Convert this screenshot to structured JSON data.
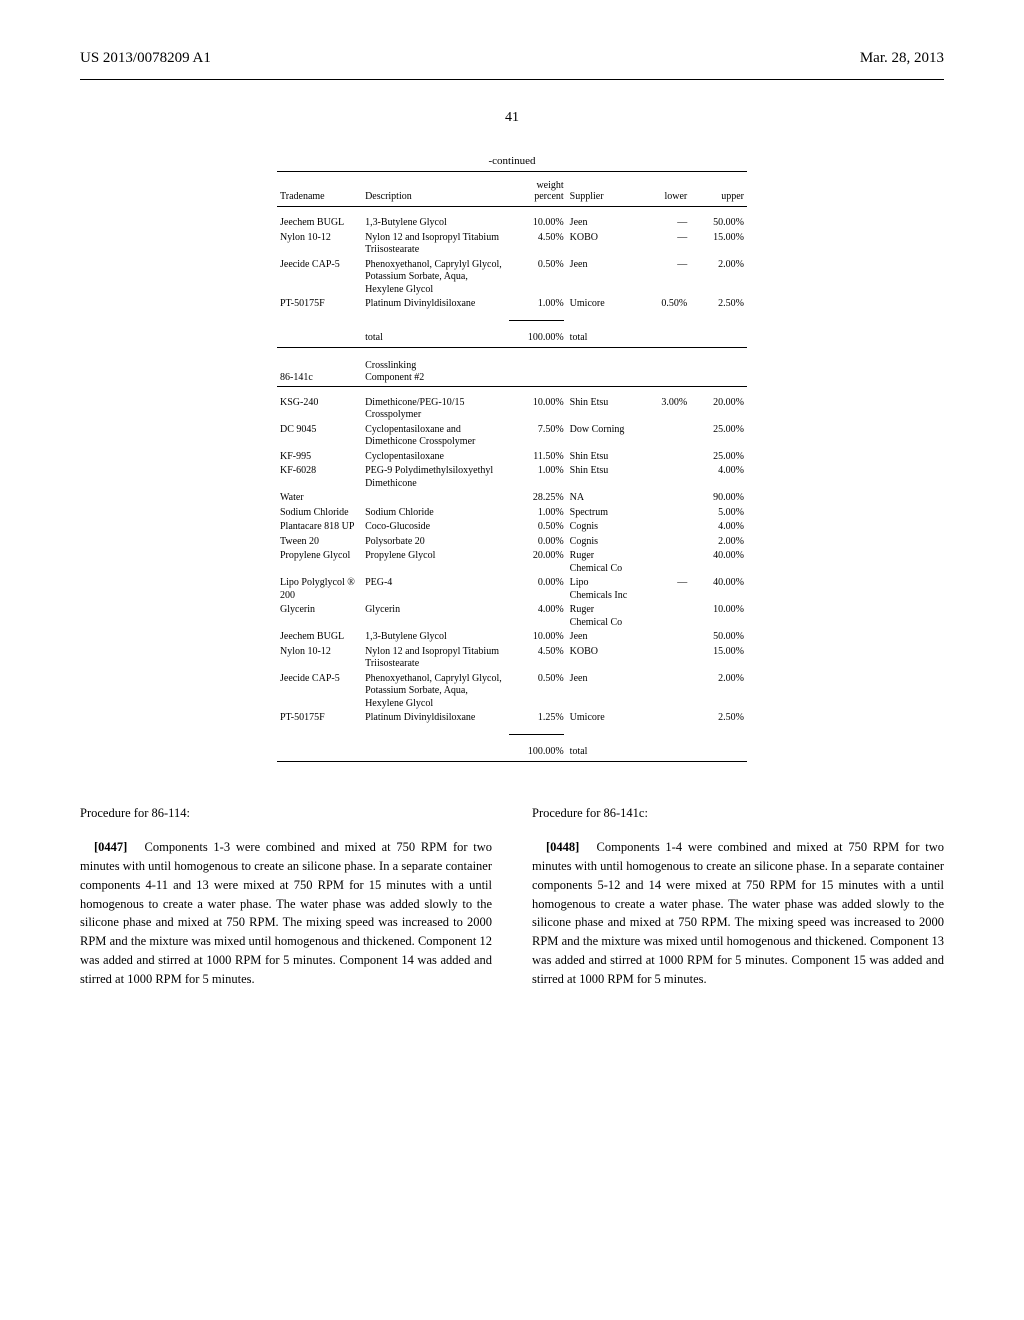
{
  "header": {
    "left": "US 2013/0078209 A1",
    "right": "Mar. 28, 2013"
  },
  "page_number": "41",
  "table": {
    "continued": "-continued",
    "columns": {
      "tradename": "Tradename",
      "description": "Description",
      "weight_line1": "weight",
      "weight_line2": "percent",
      "supplier": "Supplier",
      "lower": "lower",
      "upper": "upper"
    },
    "section1": [
      {
        "trade": "Jeechem BUGL",
        "desc": "1,3-Butylene Glycol",
        "wt": "10.00%",
        "sup": "Jeen",
        "low": "—",
        "up": "50.00%"
      },
      {
        "trade": "Nylon 10-12",
        "desc": "Nylon 12 and Isopropyl Titabium Triisostearate",
        "wt": "4.50%",
        "sup": "KOBO",
        "low": "—",
        "up": "15.00%"
      },
      {
        "trade": "Jeecide CAP-5",
        "desc": "Phenoxyethanol, Caprylyl Glycol, Potassium Sorbate, Aqua, Hexylene Glycol",
        "wt": "0.50%",
        "sup": "Jeen",
        "low": "—",
        "up": "2.00%"
      },
      {
        "trade": "PT-50175F",
        "desc": "Platinum Divinyldisiloxane",
        "wt": "1.00%",
        "sup": "Umicore",
        "low": "0.50%",
        "up": "2.50%"
      }
    ],
    "section1_total": {
      "label": "total",
      "wt": "100.00%",
      "sup": "total"
    },
    "mid_header": {
      "code": "86-141c",
      "desc1": "Crosslinking",
      "desc2": "Component #2"
    },
    "section2": [
      {
        "trade": "KSG-240",
        "desc": "Dimethicone/PEG-10/15 Crosspolymer",
        "wt": "10.00%",
        "sup": "Shin Etsu",
        "low": "3.00%",
        "up": "20.00%"
      },
      {
        "trade": "DC 9045",
        "desc": "Cyclopentasiloxane and Dimethicone Crosspolymer",
        "wt": "7.50%",
        "sup": "Dow Corning",
        "low": "",
        "up": "25.00%"
      },
      {
        "trade": "KF-995",
        "desc": "Cyclopentasiloxane",
        "wt": "11.50%",
        "sup": "Shin Etsu",
        "low": "",
        "up": "25.00%"
      },
      {
        "trade": "KF-6028",
        "desc": "PEG-9 Polydimethylsiloxyethyl Dimethicone",
        "wt": "1.00%",
        "sup": "Shin Etsu",
        "low": "",
        "up": "4.00%"
      },
      {
        "trade": "Water",
        "desc": "",
        "wt": "28.25%",
        "sup": "NA",
        "low": "",
        "up": "90.00%"
      },
      {
        "trade": "Sodium Chloride",
        "desc": "Sodium Chloride",
        "wt": "1.00%",
        "sup": "Spectrum",
        "low": "",
        "up": "5.00%"
      },
      {
        "trade": "Plantacare 818 UP",
        "desc": "Coco-Glucoside",
        "wt": "0.50%",
        "sup": "Cognis",
        "low": "",
        "up": "4.00%"
      },
      {
        "trade": "Tween 20",
        "desc": "Polysorbate 20",
        "wt": "0.00%",
        "sup": "Cognis",
        "low": "",
        "up": "2.00%"
      },
      {
        "trade": "Propylene Glycol",
        "desc": "Propylene Glycol",
        "wt": "20.00%",
        "sup": "Ruger Chemical Co",
        "low": "",
        "up": "40.00%"
      },
      {
        "trade": "Lipo Polyglycol ® 200",
        "desc": "PEG-4",
        "wt": "0.00%",
        "sup": "Lipo Chemicals Inc",
        "low": "—",
        "up": "40.00%"
      },
      {
        "trade": "Glycerin",
        "desc": "Glycerin",
        "wt": "4.00%",
        "sup": "Ruger Chemical Co",
        "low": "",
        "up": "10.00%"
      },
      {
        "trade": "Jeechem BUGL",
        "desc": "1,3-Butylene Glycol",
        "wt": "10.00%",
        "sup": "Jeen",
        "low": "",
        "up": "50.00%"
      },
      {
        "trade": "Nylon 10-12",
        "desc": "Nylon 12 and Isopropyl Titabium Triisostearate",
        "wt": "4.50%",
        "sup": "KOBO",
        "low": "",
        "up": "15.00%"
      },
      {
        "trade": "Jeecide CAP-5",
        "desc": "Phenoxyethanol, Caprylyl Glycol, Potassium Sorbate, Aqua, Hexylene Glycol",
        "wt": "0.50%",
        "sup": "Jeen",
        "low": "",
        "up": "2.00%"
      },
      {
        "trade": "PT-50175F",
        "desc": "Platinum Divinyldisiloxane",
        "wt": "1.25%",
        "sup": "Umicore",
        "low": "",
        "up": "2.50%"
      }
    ],
    "section2_total": {
      "wt": "100.00%",
      "sup": "total"
    }
  },
  "body": {
    "left": {
      "heading": "Procedure for 86-114:",
      "para_num": "[0447]",
      "text": "Components 1-3 were combined and mixed at 750 RPM for two minutes with until homogenous to create an silicone phase. In a separate container components 4-11 and 13 were mixed at 750 RPM for 15 minutes with a until homogenous to create a water phase. The water phase was added slowly to the silicone phase and mixed at 750 RPM. The mixing speed was increased to 2000 RPM and the mixture was mixed until homogenous and thickened. Component 12 was added and stirred at 1000 RPM for 5 minutes. Component 14 was added and stirred at 1000 RPM for 5 minutes."
    },
    "right": {
      "heading": "Procedure for 86-141c:",
      "para_num": "[0448]",
      "text": "Components 1-4 were combined and mixed at 750 RPM for two minutes with until homogenous to create an silicone phase. In a separate container components 5-12 and 14 were mixed at 750 RPM for 15 minutes with a until homogenous to create a water phase. The water phase was added slowly to the silicone phase and mixed at 750 RPM. The mixing speed was increased to 2000 RPM and the mixture was mixed until homogenous and thickened. Component 13 was added and stirred at 1000 RPM for 5 minutes. Component 15 was added and stirred at 1000 RPM for 5 minutes."
    }
  }
}
